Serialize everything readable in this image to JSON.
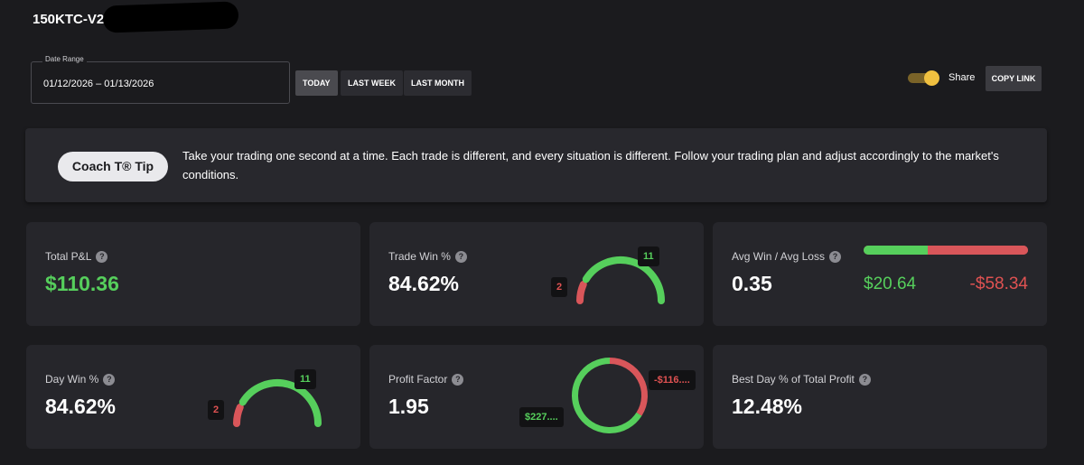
{
  "header": {
    "account_name": "150KTC-V2"
  },
  "date_range": {
    "legend": "Date Range",
    "value": "01/12/2026 – 01/13/2026"
  },
  "range_buttons": [
    {
      "label": "TODAY",
      "active": true
    },
    {
      "label": "LAST WEEK",
      "active": false
    },
    {
      "label": "LAST MONTH",
      "active": false
    }
  ],
  "share": {
    "label": "Share",
    "enabled": true,
    "copy_label": "COPY LINK",
    "toggle_color": "#f0c040"
  },
  "tip": {
    "pill": "Coach T® Tip",
    "text": "Take your trading one second at a time. Each trade is different, and every situation is different. Follow your trading plan and adjust accordingly to the market's conditions."
  },
  "colors": {
    "win": "#56cf5c",
    "loss": "#d9565a",
    "background": "#1b1b1e",
    "card": "#26262b"
  },
  "stats": {
    "total_pnl": {
      "label": "Total P&L",
      "value": "$110.36"
    },
    "trade_win": {
      "label": "Trade Win %",
      "value": "84.62%",
      "wins": 11,
      "losses": 2,
      "win_badge": "11",
      "loss_badge": "2"
    },
    "avg_win_loss": {
      "label": "Avg Win / Avg Loss",
      "value": "0.35",
      "avg_win": "$20.64",
      "avg_loss": "-$58.34",
      "win_fraction": 0.39
    },
    "day_win": {
      "label": "Day Win %",
      "value": "84.62%",
      "wins": 11,
      "losses": 2,
      "win_badge": "11",
      "loss_badge": "2"
    },
    "profit_factor": {
      "label": "Profit Factor",
      "value": "1.95",
      "gross_profit": "$227....",
      "gross_loss": "-$116....",
      "profit_share": 0.66
    },
    "best_day": {
      "label": "Best Day % of Total Profit",
      "value": "12.48%"
    }
  }
}
